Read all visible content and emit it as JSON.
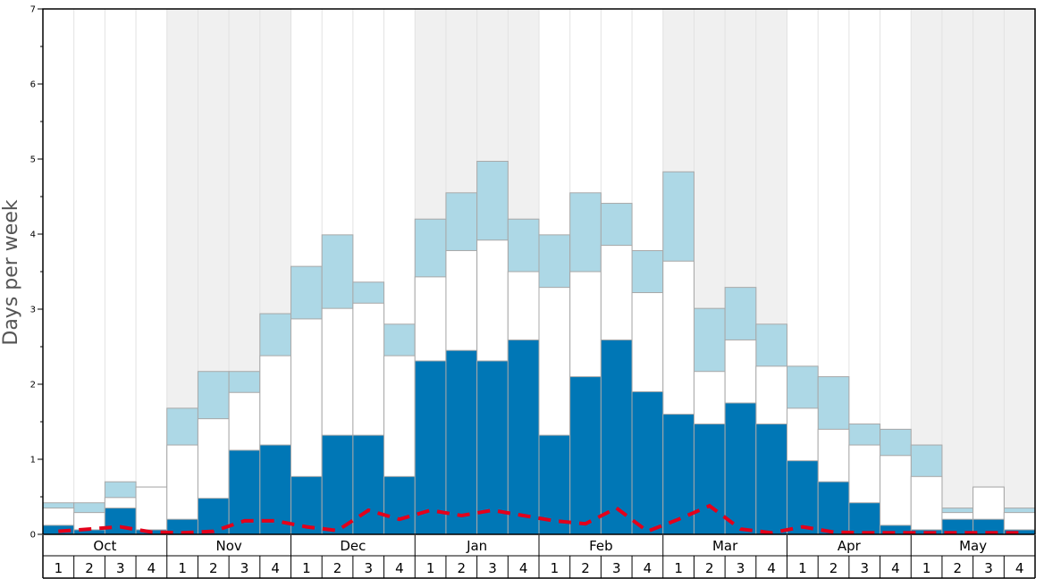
{
  "chart_data": {
    "type": "bar",
    "ylabel": "Days per week",
    "ylim": [
      0,
      7
    ],
    "y_ticks": [
      "0",
      "1",
      "2",
      "3",
      "4",
      "5",
      "6",
      "7"
    ],
    "months": [
      "Oct",
      "Nov",
      "Dec",
      "Jan",
      "Feb",
      "Mar",
      "Apr",
      "May"
    ],
    "weeks": [
      "1",
      "2",
      "3",
      "4"
    ],
    "colors": {
      "dark_blue": "#0077b6",
      "white": "#ffffff",
      "light_blue": "#add8e6",
      "dashed_line": "#e3001b",
      "shade": "#f0f0f0"
    },
    "series": [
      {
        "values": [
          0.12,
          0.06,
          0.35,
          0.06,
          0.2,
          0.48,
          1.12,
          1.19,
          0.77,
          1.32,
          1.32,
          0.77,
          2.31,
          2.45,
          2.31,
          2.59,
          1.32,
          2.1,
          2.59,
          1.9,
          1.6,
          1.47,
          1.75,
          1.47,
          0.98,
          0.7,
          0.42,
          0.12,
          0.06,
          0.2,
          0.2,
          0.06
        ]
      },
      {
        "values": [
          0.35,
          0.29,
          0.49,
          0.63,
          1.19,
          1.54,
          1.89,
          2.38,
          2.87,
          3.01,
          3.08,
          2.38,
          3.43,
          3.78,
          3.92,
          3.5,
          3.29,
          3.5,
          3.85,
          3.22,
          3.64,
          2.17,
          2.59,
          2.24,
          1.68,
          1.4,
          1.19,
          1.05,
          0.77,
          0.29,
          0.63,
          0.29
        ]
      },
      {
        "values": [
          0.42,
          0.42,
          0.7,
          0.63,
          1.68,
          2.17,
          2.17,
          2.94,
          3.57,
          3.99,
          3.36,
          2.8,
          4.2,
          4.55,
          4.97,
          4.2,
          3.99,
          4.55,
          4.41,
          3.78,
          4.83,
          3.01,
          3.29,
          2.8,
          2.24,
          2.1,
          1.47,
          1.4,
          1.19,
          0.35,
          0.63,
          0.35
        ]
      },
      {
        "type": "line",
        "values": [
          0.04,
          0.07,
          0.1,
          0.03,
          0.02,
          0.04,
          0.18,
          0.18,
          0.1,
          0.05,
          0.32,
          0.2,
          0.32,
          0.25,
          0.32,
          0.25,
          0.18,
          0.14,
          0.35,
          0.04,
          0.2,
          0.38,
          0.07,
          0.02,
          0.1,
          0.03,
          0.02,
          0.02,
          0.02,
          0.02,
          0.02,
          0.02
        ]
      }
    ]
  }
}
